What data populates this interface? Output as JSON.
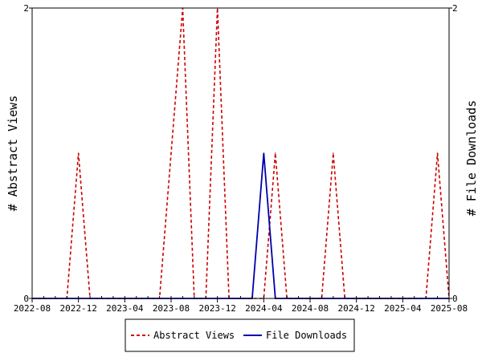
{
  "chart_data": {
    "type": "line",
    "x": [
      "2022-08",
      "2022-09",
      "2022-10",
      "2022-11",
      "2022-12",
      "2023-01",
      "2023-02",
      "2023-03",
      "2023-04",
      "2023-05",
      "2023-06",
      "2023-07",
      "2023-08",
      "2023-09",
      "2023-10",
      "2023-11",
      "2023-12",
      "2024-01",
      "2024-02",
      "2024-03",
      "2024-04",
      "2024-05",
      "2024-06",
      "2024-07",
      "2024-08",
      "2024-09",
      "2024-10",
      "2024-11",
      "2024-12",
      "2025-01",
      "2025-02",
      "2025-03",
      "2025-04",
      "2025-05",
      "2025-06",
      "2025-07",
      "2025-08"
    ],
    "x_tick_labels": [
      "2022-08",
      "2022-12",
      "2023-04",
      "2023-08",
      "2023-12",
      "2024-04",
      "2024-08",
      "2024-12",
      "2025-04",
      "2025-08"
    ],
    "series": [
      {
        "name": "Abstract Views",
        "axis": "left",
        "color": "#cc0000",
        "style": "dashed",
        "values": [
          0,
          0,
          0,
          0,
          1,
          0,
          0,
          0,
          0,
          0,
          0,
          0,
          1,
          2,
          0,
          0,
          2,
          0,
          0,
          0,
          0,
          1,
          0,
          0,
          0,
          0,
          1,
          0,
          0,
          0,
          0,
          0,
          0,
          0,
          0,
          1,
          0
        ]
      },
      {
        "name": "File Downloads",
        "axis": "right",
        "color": "#0000aa",
        "style": "solid",
        "values": [
          0,
          0,
          0,
          0,
          0,
          0,
          0,
          0,
          0,
          0,
          0,
          0,
          0,
          0,
          0,
          0,
          0,
          0,
          0,
          0,
          1,
          0,
          0,
          0,
          0,
          0,
          0,
          0,
          0,
          0,
          0,
          0,
          0,
          0,
          0,
          0,
          0
        ]
      }
    ],
    "ylabel_left": "# Abstract Views",
    "ylabel_right": "# File Downloads",
    "ylim_left": [
      0,
      2
    ],
    "ylim_right": [
      0,
      2
    ],
    "y_tick_labels_left": [
      "0",
      "2"
    ],
    "y_tick_labels_right": [
      "0",
      "2"
    ],
    "grid": false,
    "legend_position": "bottom"
  }
}
